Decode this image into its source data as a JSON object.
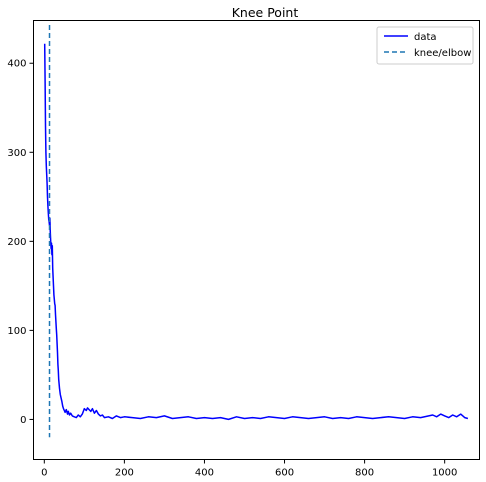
{
  "chart_data": {
    "type": "line",
    "title": "Knee Point",
    "xlabel": "",
    "ylabel": "",
    "xlim": [
      -27,
      1087
    ],
    "ylim": [
      -45,
      448
    ],
    "xticks": [
      0,
      200,
      400,
      600,
      800,
      1000
    ],
    "yticks": [
      0,
      100,
      200,
      300,
      400
    ],
    "grid": false,
    "legend_position": "top-right",
    "series": [
      {
        "name": "data",
        "color": "#0000ff",
        "style": "solid",
        "x": [
          1,
          2,
          3,
          4,
          5,
          6,
          7,
          8,
          9,
          10,
          11,
          12,
          13,
          14,
          15,
          16,
          17,
          18,
          19,
          20,
          21,
          22,
          23,
          24,
          25,
          26,
          27,
          28,
          29,
          30,
          31,
          32,
          33,
          34,
          35,
          36,
          37,
          38,
          40,
          42,
          44,
          46,
          48,
          50,
          52,
          55,
          58,
          60,
          63,
          66,
          70,
          75,
          80,
          85,
          90,
          95,
          100,
          105,
          108,
          112,
          116,
          120,
          125,
          130,
          135,
          140,
          145,
          150,
          160,
          170,
          180,
          190,
          200,
          220,
          240,
          260,
          280,
          300,
          320,
          340,
          360,
          380,
          400,
          420,
          440,
          460,
          480,
          500,
          520,
          540,
          560,
          580,
          600,
          620,
          640,
          660,
          680,
          700,
          720,
          740,
          760,
          780,
          800,
          820,
          840,
          860,
          880,
          900,
          920,
          940,
          960,
          970,
          980,
          990,
          1000,
          1010,
          1020,
          1030,
          1040,
          1050,
          1058
        ],
        "y": [
          422,
          380,
          330,
          300,
          285,
          275,
          265,
          250,
          240,
          232,
          225,
          222,
          218,
          226,
          210,
          200,
          192,
          198,
          185,
          195,
          170,
          160,
          150,
          140,
          135,
          130,
          128,
          118,
          110,
          102,
          95,
          85,
          75,
          62,
          55,
          45,
          40,
          35,
          28,
          24,
          20,
          15,
          12,
          10,
          8,
          11,
          6,
          9,
          5,
          7,
          4,
          3,
          2,
          5,
          3,
          6,
          12,
          10,
          13,
          11,
          9,
          12,
          7,
          10,
          6,
          4,
          5,
          2,
          3,
          1,
          4,
          2,
          3,
          2,
          1,
          3,
          2,
          4,
          1,
          2,
          3,
          1,
          2,
          1,
          2,
          0,
          3,
          1,
          2,
          1,
          3,
          2,
          1,
          3,
          2,
          1,
          2,
          3,
          1,
          2,
          1,
          3,
          2,
          1,
          2,
          3,
          2,
          1,
          3,
          2,
          4,
          5,
          3,
          6,
          4,
          2,
          5,
          3,
          6,
          2,
          1
        ]
      }
    ],
    "vlines": [
      {
        "name": "knee/elbow",
        "x": 13,
        "ymin": -20,
        "ymax": 443,
        "color": "#1f77b4",
        "style": "dashed"
      }
    ]
  }
}
